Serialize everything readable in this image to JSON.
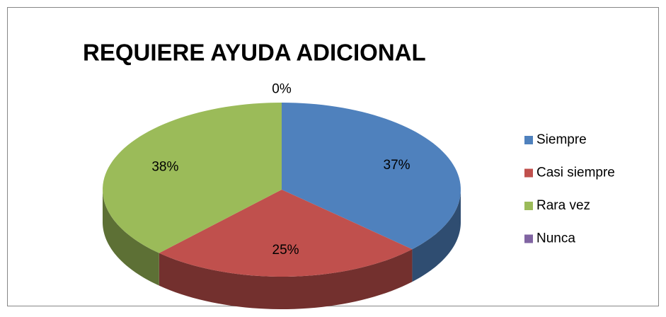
{
  "chart_data": {
    "type": "pie3d",
    "title": "REQUIERE AYUDA ADICIONAL",
    "categories": [
      "Siempre",
      "Casi siempre",
      "Rara vez",
      "Nunca"
    ],
    "values": [
      37,
      25,
      38,
      0
    ],
    "value_labels": [
      "37%",
      "25%",
      "38%",
      "0%"
    ],
    "colors": [
      "#4f81bd",
      "#c0504d",
      "#9bbb59",
      "#8064a2"
    ],
    "legend": "right"
  }
}
